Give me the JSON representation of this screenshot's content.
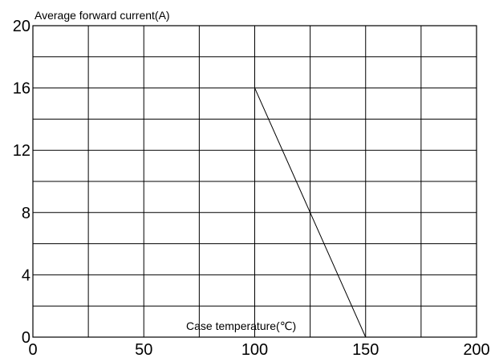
{
  "chart_data": {
    "type": "line",
    "ylabel": "Average forward current(A)",
    "xlabel": "Case temperature(℃)",
    "xlim": [
      0,
      200
    ],
    "ylim": [
      0,
      20
    ],
    "x_ticks": [
      "0",
      "50",
      "100",
      "150",
      "200"
    ],
    "y_ticks": [
      "0",
      "4",
      "8",
      "12",
      "16",
      "20"
    ],
    "x_grid_step": 25,
    "y_grid_step": 2,
    "grid": true,
    "series": [
      {
        "x": [
          100,
          150
        ],
        "y": [
          16,
          0
        ]
      }
    ],
    "colors": {
      "line": "#000000",
      "grid": "#000000",
      "background": "#ffffff"
    }
  }
}
